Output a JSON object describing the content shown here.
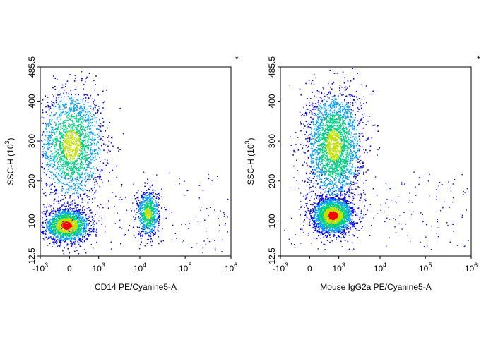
{
  "chart_data": [
    {
      "type": "scatter",
      "title": "",
      "marker": "*",
      "xlabel": "CD14 PE/Cyanine5-A",
      "ylabel_main": "SSC-H (10",
      "ylabel_exp": "3",
      "ylabel_close": ")",
      "xscale": "biexponential",
      "xlim": [
        -1000,
        1000000
      ],
      "ylim": [
        12.5,
        485.5
      ],
      "x_ticks": [
        {
          "base": "-10",
          "exp": "3",
          "value": -1000
        },
        {
          "base": "0",
          "exp": "",
          "value": 0
        },
        {
          "base": "10",
          "exp": "3",
          "value": 1000
        },
        {
          "base": "10",
          "exp": "4",
          "value": 10000
        },
        {
          "base": "10",
          "exp": "5",
          "value": 100000
        },
        {
          "base": "10",
          "exp": "6",
          "value": 1000000
        }
      ],
      "y_ticks": [
        "12.5",
        "100",
        "200",
        "300",
        "400",
        "485.5"
      ],
      "y_tick_values": [
        12.5,
        100,
        200,
        300,
        400,
        485.5
      ],
      "populations": [
        {
          "name": "",
          "x_center": 30,
          "y_center": 290,
          "x_spread": 0.35,
          "y_spread": 70,
          "count": 1900,
          "density": "medium"
        },
        {
          "name": "",
          "x_center": -50,
          "y_center": 90,
          "x_spread": 0.25,
          "y_spread": 20,
          "count": 1700,
          "density": "high"
        },
        {
          "name": "",
          "x_center": 15000,
          "y_center": 120,
          "x_spread": 0.12,
          "y_spread": 28,
          "count": 700,
          "density": "medium"
        }
      ]
    },
    {
      "type": "scatter",
      "title": "",
      "marker": "*",
      "xlabel": "Mouse IgG2a PE/Cyanine5-A",
      "ylabel_main": "SSC-H (10",
      "ylabel_exp": "3",
      "ylabel_close": ")",
      "xscale": "biexponential",
      "xlim": [
        -1000,
        1000000
      ],
      "ylim": [
        12.5,
        485.5
      ],
      "x_ticks": [
        {
          "base": "-10",
          "exp": "3",
          "value": -1000
        },
        {
          "base": "0",
          "exp": "",
          "value": 0
        },
        {
          "base": "10",
          "exp": "3",
          "value": 1000
        },
        {
          "base": "10",
          "exp": "4",
          "value": 10000
        },
        {
          "base": "10",
          "exp": "5",
          "value": 100000
        },
        {
          "base": "10",
          "exp": "6",
          "value": 1000000
        }
      ],
      "y_ticks": [
        "12.5",
        "100",
        "200",
        "300",
        "400",
        "485.5"
      ],
      "y_tick_values": [
        12.5,
        100,
        200,
        300,
        400,
        485.5
      ],
      "populations": [
        {
          "name": "",
          "x_center": 700,
          "y_center": 290,
          "x_spread": 0.3,
          "y_spread": 70,
          "count": 2400,
          "density": "medium"
        },
        {
          "name": "",
          "x_center": 650,
          "y_center": 115,
          "x_spread": 0.22,
          "y_spread": 22,
          "count": 2100,
          "density": "high"
        }
      ]
    }
  ],
  "colors": {
    "density_low": "#0000ff",
    "density_mid_low": "#00a0ff",
    "density_mid": "#00d080",
    "density_mid_high": "#c0e000",
    "density_high": "#ff0000",
    "axis": "#000000"
  }
}
